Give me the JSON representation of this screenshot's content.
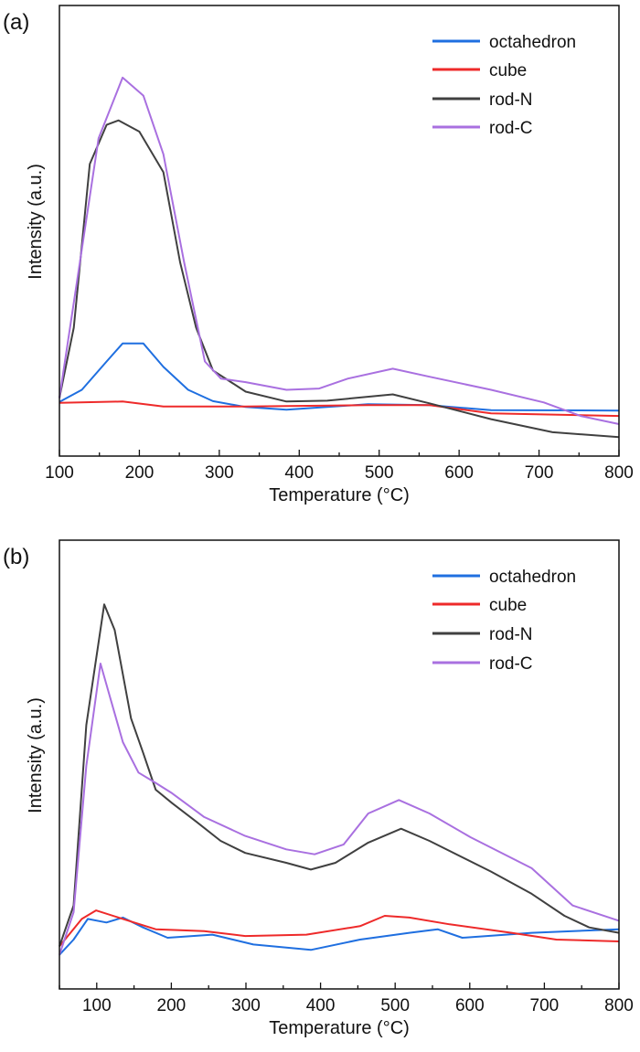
{
  "chart_data": [
    {
      "panel_label": "(a)",
      "type": "line",
      "xlabel": "Temperature (°C)",
      "ylabel": "Intensity (a.u.)",
      "xlim": [
        100,
        800
      ],
      "ylim": [
        0,
        100
      ],
      "xticks": [
        100,
        200,
        300,
        400,
        500,
        600,
        700,
        800
      ],
      "yticks_shown": false,
      "legend_position": "top-right",
      "series": [
        {
          "name": "octahedron",
          "color": "#1f6fe0",
          "points": [
            [
              100,
              12
            ],
            [
              128,
              14.7
            ],
            [
              159,
              21
            ],
            [
              179,
              25
            ],
            [
              205,
              25
            ],
            [
              230,
              19.8
            ],
            [
              261,
              14.7
            ],
            [
              292,
              12.2
            ],
            [
              333,
              10.9
            ],
            [
              384,
              10.3
            ],
            [
              486,
              11.5
            ],
            [
              563,
              11.3
            ],
            [
              640,
              10.2
            ],
            [
              800,
              10.1
            ]
          ]
        },
        {
          "name": "cube",
          "color": "#ee2a2a",
          "points": [
            [
              100,
              11.8
            ],
            [
              179,
              12.1
            ],
            [
              230,
              11
            ],
            [
              333,
              11
            ],
            [
              486,
              11.3
            ],
            [
              563,
              11.3
            ],
            [
              640,
              9.5
            ],
            [
              800,
              8.9
            ]
          ]
        },
        {
          "name": "rod-N",
          "color": "#404040",
          "points": [
            [
              100,
              12.9
            ],
            [
              118,
              28.5
            ],
            [
              138,
              64.8
            ],
            [
              159,
              73.5
            ],
            [
              174,
              74.5
            ],
            [
              200,
              72
            ],
            [
              230,
              63
            ],
            [
              251,
              43
            ],
            [
              271,
              28.5
            ],
            [
              292,
              19
            ],
            [
              333,
              14.3
            ],
            [
              384,
              12.1
            ],
            [
              435,
              12.3
            ],
            [
              517,
              13.7
            ],
            [
              563,
              11.7
            ],
            [
              640,
              8.2
            ],
            [
              717,
              5.3
            ],
            [
              800,
              4.2
            ]
          ]
        },
        {
          "name": "rod-C",
          "color": "#a970e0",
          "points": [
            [
              100,
              12.9
            ],
            [
              149,
              70.5
            ],
            [
              179,
              84
            ],
            [
              205,
              80
            ],
            [
              230,
              67
            ],
            [
              256,
              43
            ],
            [
              282,
              21
            ],
            [
              302,
              17.2
            ],
            [
              333,
              16.4
            ],
            [
              384,
              14.7
            ],
            [
              425,
              15
            ],
            [
              461,
              17.2
            ],
            [
              517,
              19.4
            ],
            [
              563,
              17.6
            ],
            [
              640,
              14.7
            ],
            [
              706,
              11.9
            ],
            [
              752,
              8.9
            ],
            [
              800,
              7.1
            ]
          ]
        }
      ]
    },
    {
      "panel_label": "(b)",
      "type": "line",
      "xlabel": "Temperature (°C)",
      "ylabel": "Intensity (a.u.)",
      "xlim": [
        50,
        800
      ],
      "ylim": [
        0,
        100
      ],
      "xticks": [
        100,
        200,
        300,
        400,
        500,
        600,
        700,
        800
      ],
      "yticks_shown": false,
      "legend_position": "top-right",
      "series": [
        {
          "name": "octahedron",
          "color": "#1f6fe0",
          "points": [
            [
              50,
              7.6
            ],
            [
              69,
              11
            ],
            [
              88,
              15.6
            ],
            [
              113,
              14.8
            ],
            [
              135,
              15.9
            ],
            [
              162,
              13.7
            ],
            [
              195,
              11.4
            ],
            [
              255,
              12.1
            ],
            [
              310,
              9.9
            ],
            [
              387,
              8.7
            ],
            [
              453,
              11
            ],
            [
              519,
              12.5
            ],
            [
              557,
              13.3
            ],
            [
              590,
              11.4
            ],
            [
              683,
              12.5
            ],
            [
              800,
              13.3
            ]
          ]
        },
        {
          "name": "cube",
          "color": "#ee2a2a",
          "points": [
            [
              50,
              9.5
            ],
            [
              80,
              15.6
            ],
            [
              99,
              17.5
            ],
            [
              135,
              15.6
            ],
            [
              179,
              13.3
            ],
            [
              244,
              12.9
            ],
            [
              299,
              11.8
            ],
            [
              381,
              12.1
            ],
            [
              453,
              14
            ],
            [
              486,
              16.3
            ],
            [
              519,
              15.9
            ],
            [
              573,
              14.4
            ],
            [
              656,
              12.5
            ],
            [
              716,
              11
            ],
            [
              800,
              10.6
            ]
          ]
        },
        {
          "name": "rod-N",
          "color": "#404040",
          "points": [
            [
              50,
              9.5
            ],
            [
              69,
              18.6
            ],
            [
              86,
              58.8
            ],
            [
              110,
              85.7
            ],
            [
              124,
              80
            ],
            [
              146,
              60.3
            ],
            [
              162,
              52.7
            ],
            [
              179,
              44.4
            ],
            [
              201,
              41.4
            ],
            [
              234,
              37.2
            ],
            [
              266,
              33
            ],
            [
              299,
              30.3
            ],
            [
              354,
              28.1
            ],
            [
              387,
              26.6
            ],
            [
              420,
              28.1
            ],
            [
              464,
              32.6
            ],
            [
              508,
              35.7
            ],
            [
              546,
              33
            ],
            [
              628,
              26.2
            ],
            [
              683,
              21.2
            ],
            [
              727,
              16.3
            ],
            [
              760,
              13.7
            ],
            [
              800,
              12.5
            ]
          ]
        },
        {
          "name": "rod-C",
          "color": "#a970e0",
          "points": [
            [
              50,
              7.6
            ],
            [
              69,
              17.1
            ],
            [
              86,
              49.7
            ],
            [
              105,
              72.5
            ],
            [
              118,
              64.9
            ],
            [
              135,
              55
            ],
            [
              156,
              48.2
            ],
            [
              179,
              45.9
            ],
            [
              201,
              43.6
            ],
            [
              244,
              38.3
            ],
            [
              299,
              34.1
            ],
            [
              354,
              31.1
            ],
            [
              392,
              30
            ],
            [
              431,
              32.2
            ],
            [
              464,
              39.1
            ],
            [
              505,
              42.1
            ],
            [
              546,
              39.1
            ],
            [
              601,
              33.8
            ],
            [
              683,
              26.9
            ],
            [
              738,
              18.6
            ],
            [
              800,
              15.2
            ]
          ]
        }
      ]
    }
  ]
}
